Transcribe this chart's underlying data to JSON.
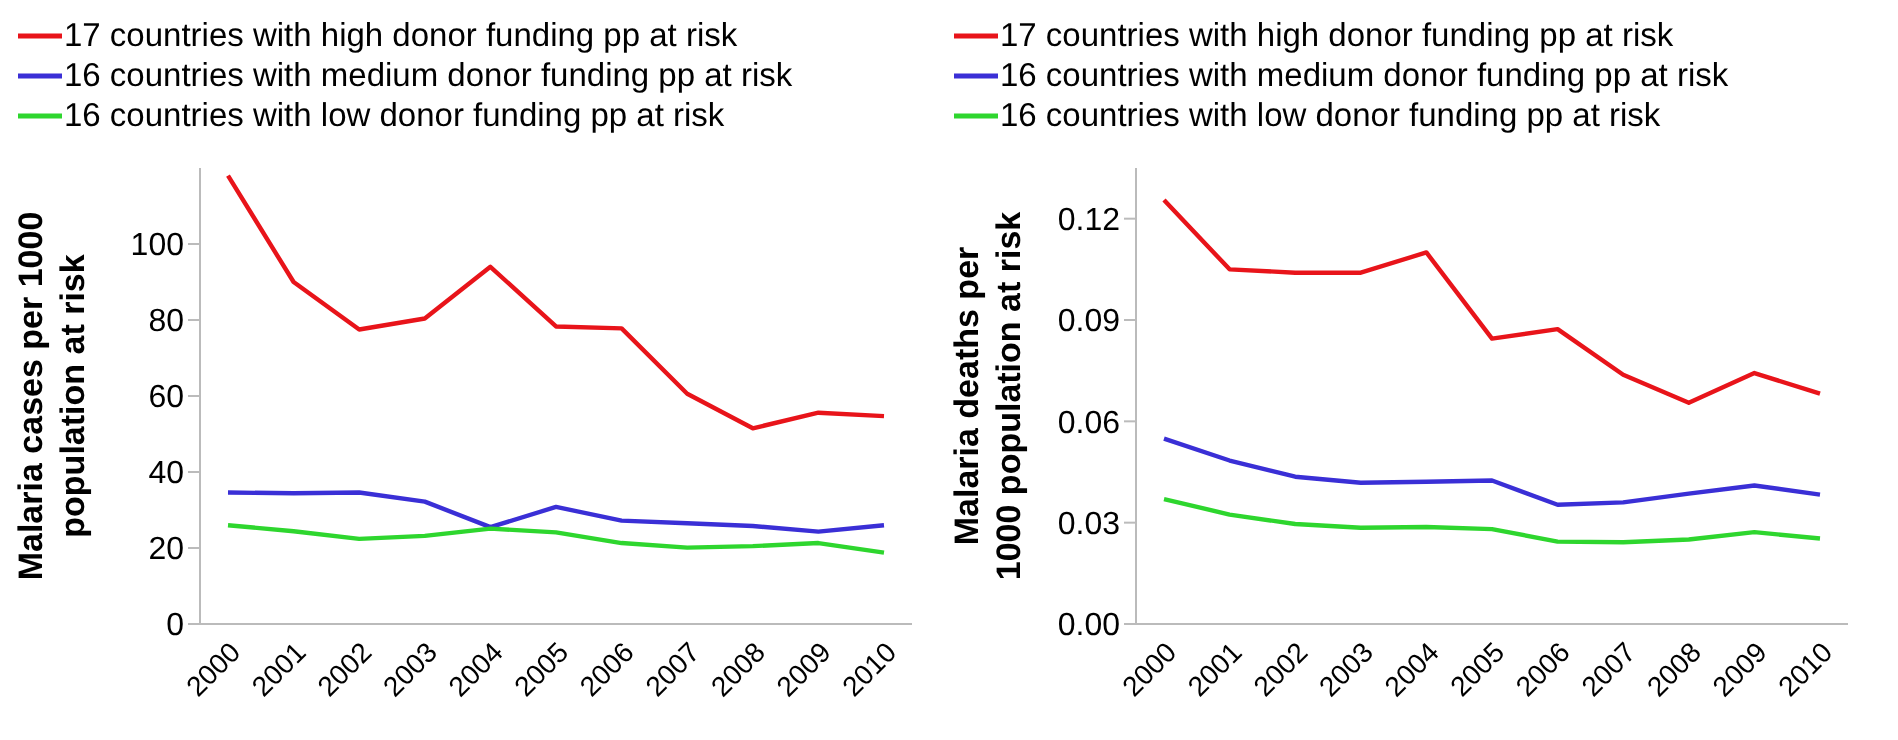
{
  "chart_data": [
    {
      "type": "line",
      "ylabel": "Malaria cases per 1000 population at risk",
      "categories": [
        "2000",
        "2001",
        "2002",
        "2003",
        "2004",
        "2005",
        "2006",
        "2007",
        "2008",
        "2009",
        "2010"
      ],
      "ylim": [
        0,
        120
      ],
      "yticks": [
        0,
        20,
        40,
        60,
        80,
        100
      ],
      "legend": "top left",
      "grid": false,
      "marker": "none",
      "series": [
        {
          "name": "17 countries with high donor funding pp at risk",
          "color": "#e8141a",
          "values": [
            118,
            90,
            77.5,
            80.4,
            94,
            78.3,
            77.8,
            60.6,
            51.5,
            55.6,
            54.7
          ]
        },
        {
          "name": "16 countries with medium donor funding pp at risk",
          "color": "#3a2fd6",
          "values": [
            34.6,
            34.4,
            34.6,
            32.2,
            25.5,
            30.8,
            27.2,
            26.5,
            25.8,
            24.3,
            26
          ]
        },
        {
          "name": "16 countries with low donor funding pp at risk",
          "color": "#2ed62e",
          "values": [
            26,
            24.4,
            22.4,
            23.2,
            25.1,
            24.1,
            21.3,
            20.1,
            20.5,
            21.3,
            18.8
          ]
        }
      ]
    },
    {
      "type": "line",
      "ylabel": "Malaria deaths per 1000 population at risk",
      "categories": [
        "2000",
        "2001",
        "2002",
        "2003",
        "2004",
        "2005",
        "2006",
        "2007",
        "2008",
        "2009",
        "2010"
      ],
      "ylim": [
        0,
        0.135
      ],
      "yticks": [
        {
          "value": 0,
          "label": "0.00"
        },
        {
          "value": 0.03,
          "label": "0.03"
        },
        {
          "value": 0.06,
          "label": "0.06"
        },
        {
          "value": 0.09,
          "label": "0.09"
        },
        {
          "value": 0.12,
          "label": "0.12"
        }
      ],
      "legend": "top left",
      "grid": false,
      "marker": "none",
      "series": [
        {
          "name": "17 countries with high donor funding pp at risk",
          "color": "#e8141a",
          "values": [
            0.1255,
            0.105,
            0.104,
            0.104,
            0.11,
            0.0845,
            0.0873,
            0.0738,
            0.0655,
            0.0743,
            0.0682
          ]
        },
        {
          "name": "16 countries with medium donor funding pp at risk",
          "color": "#3a2fd6",
          "values": [
            0.0549,
            0.0484,
            0.0436,
            0.0418,
            0.0421,
            0.0425,
            0.0353,
            0.036,
            0.0386,
            0.041,
            0.0383
          ]
        },
        {
          "name": "16 countries with low donor funding pp at risk",
          "color": "#2ed62e",
          "values": [
            0.037,
            0.0324,
            0.0296,
            0.0285,
            0.0287,
            0.0281,
            0.0244,
            0.0242,
            0.025,
            0.0272,
            0.0253
          ]
        }
      ]
    }
  ]
}
